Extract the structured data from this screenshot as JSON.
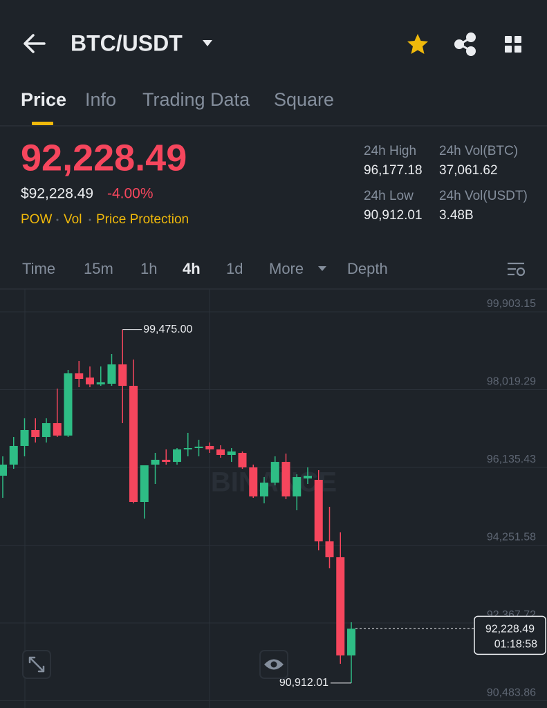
{
  "header": {
    "title": "BTC/USDT"
  },
  "tabs": [
    "Price",
    "Info",
    "Trading Data",
    "Square"
  ],
  "ticker": {
    "price": "92,228.49",
    "price_usd": "$92,228.49",
    "change": "-4.00%",
    "badges": [
      "POW",
      "Vol",
      "Price Protection"
    ],
    "stats": [
      {
        "label": "24h High",
        "value": "96,177.18"
      },
      {
        "label": "24h Vol(BTC)",
        "value": "37,061.62"
      },
      {
        "label": "24h Low",
        "value": "90,912.01"
      },
      {
        "label": "24h Vol(USDT)",
        "value": "3.48B"
      }
    ]
  },
  "intervals": [
    "Time",
    "15m",
    "1h",
    "4h",
    "1d",
    "More",
    "Depth"
  ],
  "chart_data": {
    "type": "candlestick",
    "watermark": "BINANCE",
    "up_color": "#2ebd85",
    "down_color": "#f6465d",
    "ylim": [
      90308,
      100456
    ],
    "yticks": [
      {
        "value": 99903.15,
        "label": "99,903.15"
      },
      {
        "value": 98019.29,
        "label": "98,019.29"
      },
      {
        "value": 96135.43,
        "label": "96,135.43"
      },
      {
        "value": 94251.58,
        "label": "94,251.58"
      },
      {
        "value": 92367.72,
        "label": "92,367.72"
      },
      {
        "value": 90483.86,
        "label": "90,483.86"
      }
    ],
    "grid": true,
    "open": [
      95934,
      96203,
      96655,
      97040,
      96872,
      97207,
      96906,
      98413,
      98312,
      98145,
      98162,
      98630,
      98111,
      95298,
      96203,
      96320,
      96269,
      96571,
      96604,
      96655,
      96571,
      96437,
      96487,
      96136,
      95432,
      95767,
      96269,
      95432,
      95867,
      95834,
      94344,
      93959,
      91581
    ],
    "high": [
      96403,
      96872,
      97324,
      97324,
      97324,
      98044,
      98496,
      98714,
      98580,
      98580,
      98882,
      99475,
      98747,
      96186,
      96487,
      96571,
      96604,
      96973,
      96805,
      96738,
      96671,
      96604,
      96521,
      96203,
      95901,
      96403,
      96470,
      95968,
      96136,
      96069,
      95181,
      94561,
      92385
    ],
    "low": [
      95399,
      96102,
      96403,
      96738,
      96738,
      96872,
      96872,
      98078,
      98078,
      98111,
      98111,
      97207,
      95265,
      94896,
      95734,
      96203,
      96203,
      96403,
      96403,
      96487,
      96370,
      96269,
      96102,
      95399,
      95265,
      95700,
      95365,
      95097,
      95734,
      94126,
      93691,
      91380,
      90912.01
    ],
    "close": [
      96203,
      96655,
      97040,
      96872,
      97207,
      96906,
      98413,
      98279,
      98145,
      98195,
      98630,
      98111,
      95298,
      96186,
      96320,
      96269,
      96571,
      96604,
      96638,
      96571,
      96437,
      96521,
      96136,
      95432,
      95767,
      96269,
      95432,
      95901,
      95934,
      94344,
      93959,
      91581,
      92228.49
    ],
    "high_label": {
      "value": 99475,
      "label": "99,475.00"
    },
    "low_label": {
      "value": 90912.01,
      "label": "90,912.01"
    },
    "last_price": {
      "value": 92228.49,
      "label": "92,228.49",
      "countdown": "01:18:58"
    }
  }
}
